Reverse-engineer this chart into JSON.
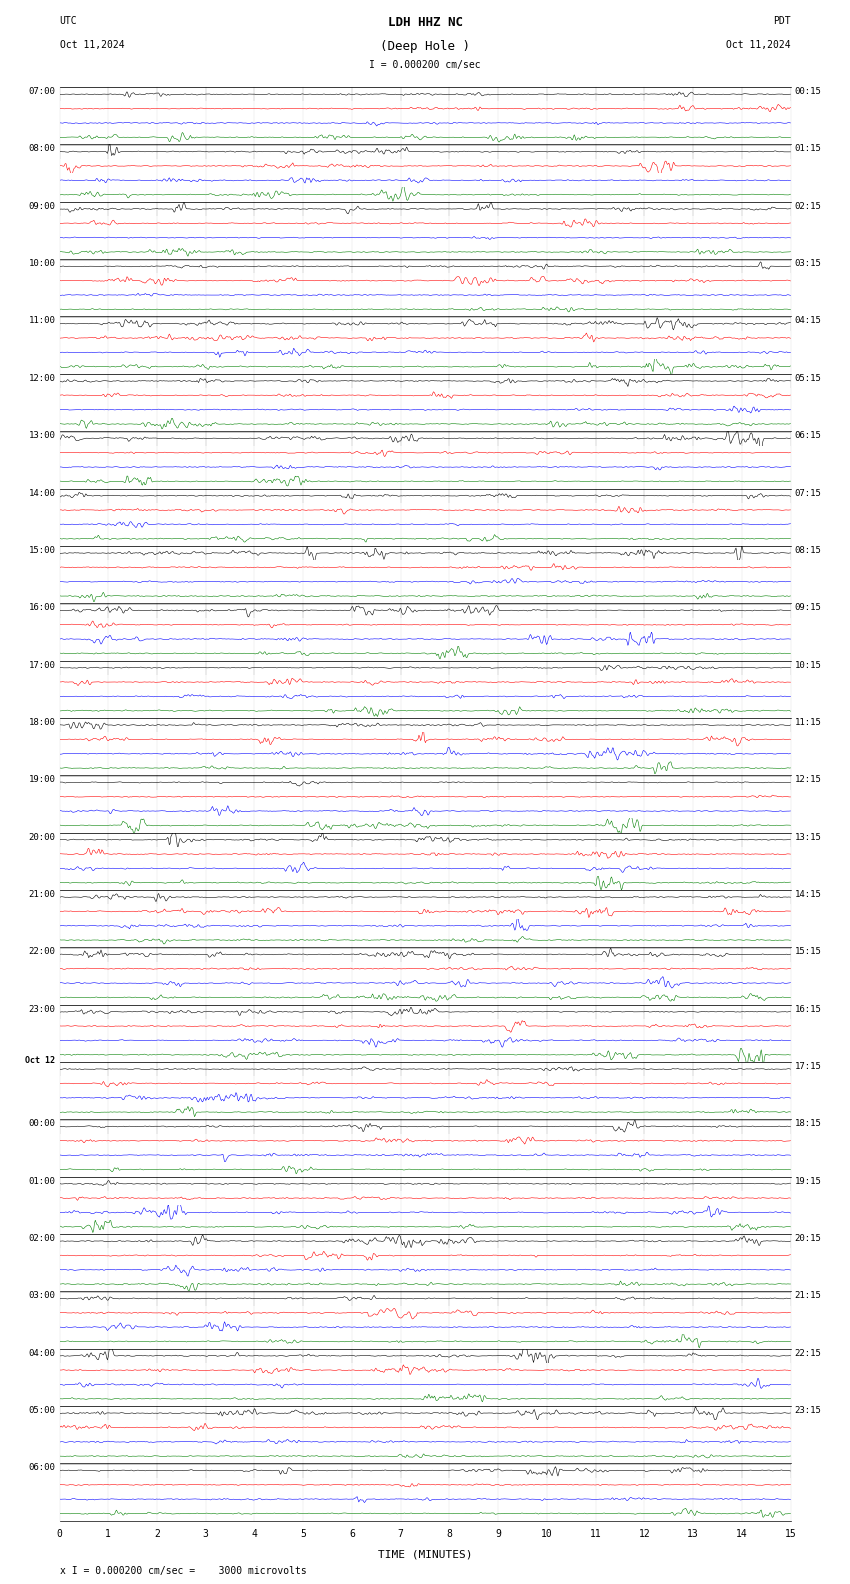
{
  "title_line1": "LDH HHZ NC",
  "title_line2": "(Deep Hole )",
  "scale_text": "I = 0.000200 cm/sec",
  "utc_label": "UTC",
  "pdt_label": "PDT",
  "date_left": "Oct 11,2024",
  "date_right": "Oct 11,2024",
  "footer_text": "x I = 0.000200 cm/sec =    3000 microvolts",
  "xlabel": "TIME (MINUTES)",
  "x_ticks": [
    0,
    1,
    2,
    3,
    4,
    5,
    6,
    7,
    8,
    9,
    10,
    11,
    12,
    13,
    14,
    15
  ],
  "left_times": [
    "07:00",
    "08:00",
    "09:00",
    "10:00",
    "11:00",
    "12:00",
    "13:00",
    "14:00",
    "15:00",
    "16:00",
    "17:00",
    "18:00",
    "19:00",
    "20:00",
    "21:00",
    "22:00",
    "23:00",
    "Oct 12",
    "00:00",
    "01:00",
    "02:00",
    "03:00",
    "04:00",
    "05:00",
    "06:00"
  ],
  "right_times": [
    "00:15",
    "01:15",
    "02:15",
    "03:15",
    "04:15",
    "05:15",
    "06:15",
    "07:15",
    "08:15",
    "09:15",
    "10:15",
    "11:15",
    "12:15",
    "13:15",
    "14:15",
    "15:15",
    "16:15",
    "17:15",
    "18:15",
    "19:15",
    "20:15",
    "21:15",
    "22:15",
    "23:15"
  ],
  "n_rows": 25,
  "traces_per_row": 4,
  "trace_colors": [
    "black",
    "red",
    "blue",
    "green"
  ],
  "bg_color": "white",
  "fig_width": 8.5,
  "fig_height": 15.84,
  "dpi": 100,
  "amplitude_scale": 0.35,
  "noise_seed": 42,
  "special_row": 22,
  "special_trace": 1,
  "special_color": "blue"
}
